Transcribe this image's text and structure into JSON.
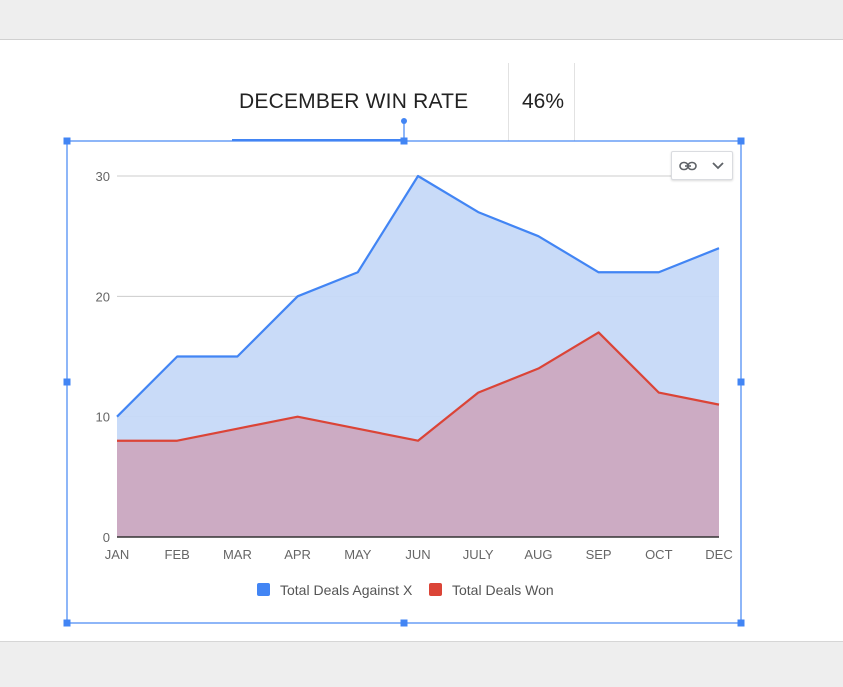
{
  "header": {
    "win_rate_label": "DECEMBER WIN RATE",
    "win_rate_value": "46%"
  },
  "toolbar": {
    "icons": [
      "link-icon",
      "chevron-down-icon"
    ]
  },
  "chart_data": {
    "type": "area",
    "categories": [
      "JAN",
      "FEB",
      "MAR",
      "APR",
      "MAY",
      "JUN",
      "JULY",
      "AUG",
      "SEP",
      "OCT",
      "DEC"
    ],
    "series": [
      {
        "name": "Total Deals Against X",
        "color": "#4285f4",
        "fill": "#c6d9f8",
        "values": [
          10,
          15,
          15,
          20,
          22,
          30,
          27,
          25,
          22,
          22,
          24
        ]
      },
      {
        "name": "Total Deals Won",
        "color": "#db4437",
        "fill": "#cca9c0",
        "values": [
          8,
          8,
          9,
          10,
          9,
          8,
          12,
          14,
          17,
          12,
          11
        ]
      }
    ],
    "ylim": [
      0,
      30
    ],
    "yticks": [
      0,
      10,
      20,
      30
    ],
    "grid": true,
    "legend": "bottom"
  }
}
